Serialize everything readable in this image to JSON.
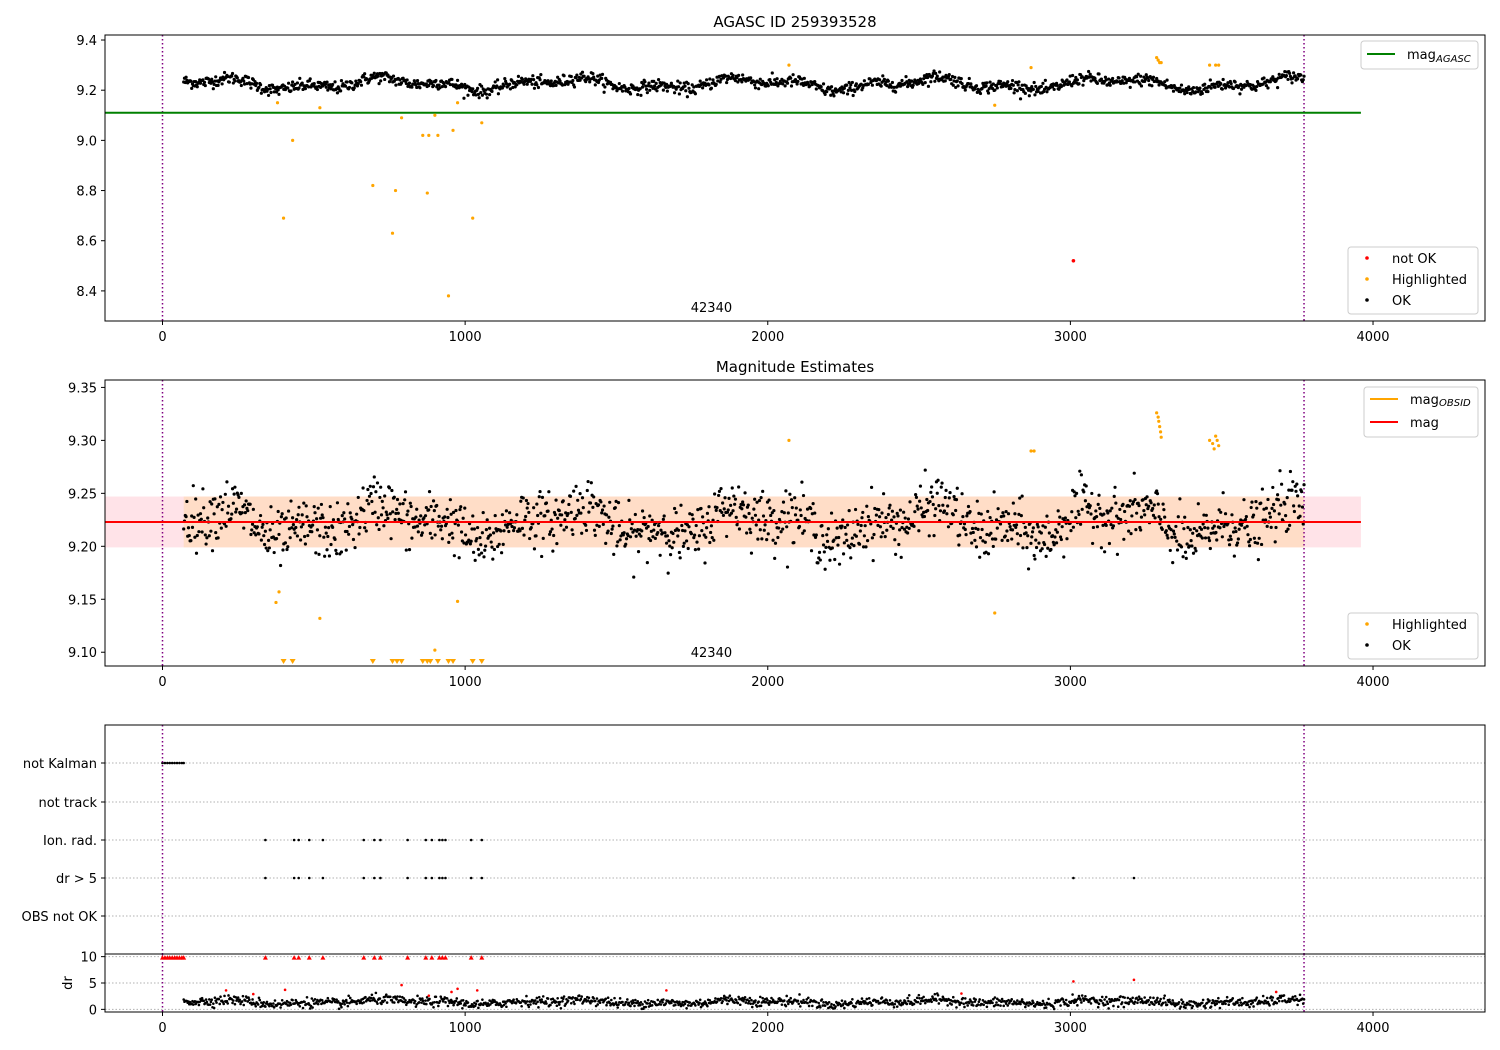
{
  "chart_data": [
    {
      "type": "scatter",
      "title": "AGASC ID 259393528",
      "xlabel": "",
      "ylabel": "",
      "xlim": [
        -190,
        4370
      ],
      "ylim": [
        8.28,
        9.42
      ],
      "xticks": [
        0,
        1000,
        2000,
        3000,
        4000
      ],
      "xtick_labels": [
        "0",
        "1000",
        "2000",
        "3000",
        "4000"
      ],
      "yticks": [
        8.4,
        8.6,
        8.8,
        9.0,
        9.2,
        9.4
      ],
      "ytick_labels": [
        "8.4",
        "8.6",
        "8.8",
        "9.0",
        "9.2",
        "9.4"
      ],
      "annotation": {
        "text": "42340",
        "x": 1880
      },
      "vlines": [
        0,
        3772
      ],
      "hline": {
        "name": "mag_AGASC",
        "y": 9.11,
        "x_range": [
          -190,
          3960
        ],
        "color": "#008000"
      },
      "ok_series": {
        "name": "OK",
        "x_range": [
          70,
          3772
        ],
        "base": 9.225,
        "wave_amp": 0.03,
        "noise": 0.012,
        "color": "#000000"
      },
      "highlighted_points": [
        [
          380,
          9.15
        ],
        [
          400,
          8.69
        ],
        [
          430,
          9.0
        ],
        [
          520,
          9.13
        ],
        [
          695,
          8.82
        ],
        [
          760,
          8.63
        ],
        [
          770,
          8.8
        ],
        [
          790,
          9.09
        ],
        [
          860,
          9.02
        ],
        [
          875,
          8.79
        ],
        [
          880,
          9.02
        ],
        [
          900,
          9.1
        ],
        [
          910,
          9.02
        ],
        [
          945,
          8.38
        ],
        [
          960,
          9.04
        ],
        [
          975,
          9.15
        ],
        [
          1025,
          8.69
        ],
        [
          1055,
          9.07
        ],
        [
          2070,
          9.3
        ],
        [
          2750,
          9.14
        ],
        [
          2870,
          9.29
        ],
        [
          3285,
          9.33
        ],
        [
          3290,
          9.32
        ],
        [
          3295,
          9.31
        ],
        [
          3300,
          9.31
        ],
        [
          3460,
          9.3
        ],
        [
          3480,
          9.3
        ],
        [
          3490,
          9.3
        ]
      ],
      "not_ok_points": [
        [
          3010,
          8.52
        ]
      ],
      "legend_upper": [
        {
          "label": "mag",
          "sub": "AGASC",
          "color": "#008000"
        }
      ],
      "legend_lower": [
        {
          "label": "not OK",
          "color": "#ff0000"
        },
        {
          "label": "Highlighted",
          "color": "#ffa500"
        },
        {
          "label": "OK",
          "color": "#000000"
        }
      ]
    },
    {
      "type": "scatter",
      "title": "Magnitude Estimates",
      "xlabel": "",
      "ylabel": "",
      "xlim": [
        -190,
        4370
      ],
      "ylim": [
        9.087,
        9.357
      ],
      "xticks": [
        0,
        1000,
        2000,
        3000,
        4000
      ],
      "xtick_labels": [
        "0",
        "1000",
        "2000",
        "3000",
        "4000"
      ],
      "yticks": [
        9.1,
        9.15,
        9.2,
        9.25,
        9.3,
        9.35
      ],
      "ytick_labels": [
        "9.10",
        "9.15",
        "9.20",
        "9.25",
        "9.30",
        "9.35"
      ],
      "annotation": {
        "text": "42340",
        "x": 1880
      },
      "vlines": [
        0,
        3772
      ],
      "mag_line": {
        "name": "mag",
        "y": 9.223,
        "x_range": [
          -190,
          3960
        ],
        "color": "#ff0000"
      },
      "mag_band": {
        "y_low": 9.199,
        "y_high": 9.247,
        "x_range": [
          -190,
          3960
        ],
        "color": "#ffc0cb"
      },
      "obsid_line": {
        "name": "mag_OBSID",
        "y": 9.222,
        "x_range": [
          70,
          3772
        ],
        "color": "#ffa500"
      },
      "obsid_band": {
        "y_low": 9.199,
        "y_high": 9.247,
        "x_range": [
          70,
          3772
        ],
        "color": "#ffdab9"
      },
      "ok_series": {
        "name": "OK",
        "x_range": [
          70,
          3772
        ],
        "base": 9.222,
        "wave_amp": 0.02,
        "noise": 0.013,
        "color": "#000000"
      },
      "highlighted_points": [
        [
          375,
          9.147
        ],
        [
          385,
          9.157
        ],
        [
          520,
          9.132
        ],
        [
          900,
          9.102
        ],
        [
          975,
          9.148
        ],
        [
          2070,
          9.3
        ],
        [
          2750,
          9.137
        ],
        [
          2870,
          9.29
        ],
        [
          2880,
          9.29
        ],
        [
          3285,
          9.326
        ],
        [
          3290,
          9.322
        ],
        [
          3292,
          9.318
        ],
        [
          3295,
          9.313
        ],
        [
          3298,
          9.308
        ],
        [
          3300,
          9.303
        ],
        [
          3460,
          9.3
        ],
        [
          3470,
          9.297
        ],
        [
          3480,
          9.304
        ],
        [
          3485,
          9.3
        ],
        [
          3490,
          9.295
        ],
        [
          3475,
          9.292
        ]
      ],
      "clipped_markers_x": [
        400,
        430,
        695,
        760,
        775,
        790,
        860,
        875,
        885,
        910,
        945,
        960,
        1025,
        1055
      ],
      "legend_upper": [
        {
          "label": "mag",
          "sub": "OBSID",
          "color": "#ffa500"
        },
        {
          "label": "mag",
          "sub": "",
          "color": "#ff0000"
        }
      ],
      "legend_lower": [
        {
          "label": "Highlighted",
          "color": "#ffa500"
        },
        {
          "label": "OK",
          "color": "#000000"
        }
      ]
    },
    {
      "type": "scatter",
      "title": "",
      "xlim": [
        -190,
        4370
      ],
      "xticks": [
        0,
        1000,
        2000,
        3000,
        4000
      ],
      "xtick_labels": [
        "0",
        "1000",
        "2000",
        "3000",
        "4000"
      ],
      "flag_labels": [
        "not Kalman",
        "not track",
        "Ion. rad.",
        "dr > 5",
        "OBS not OK"
      ],
      "flag_points": {
        "not Kalman": [
          0,
          8,
          16,
          24,
          32,
          40,
          48,
          56,
          64,
          70
        ],
        "not track": [],
        "Ion. rad.": [
          340,
          435,
          450,
          485,
          530,
          665,
          700,
          720,
          810,
          870,
          890,
          915,
          925,
          935,
          1020,
          1055
        ],
        "dr > 5": [
          340,
          435,
          450,
          485,
          530,
          665,
          700,
          720,
          810,
          870,
          890,
          915,
          925,
          935,
          1020,
          1055,
          3010,
          3210
        ],
        "OBS not OK": []
      },
      "vlines": [
        0,
        3772
      ]
    },
    {
      "type": "scatter",
      "title": "",
      "xlabel": "",
      "ylabel": "dr",
      "xlim": [
        -190,
        4370
      ],
      "ylim": [
        -0.5,
        10.5
      ],
      "xticks": [
        0,
        1000,
        2000,
        3000,
        4000
      ],
      "xtick_labels": [
        "0",
        "1000",
        "2000",
        "3000",
        "4000"
      ],
      "yticks": [
        0,
        5,
        10
      ],
      "ytick_labels": [
        "0",
        "5",
        "10"
      ],
      "vlines": [
        0,
        3772
      ],
      "ok_series": {
        "name": "OK dr",
        "x_range": [
          70,
          3772
        ],
        "base": 1.4,
        "wave_amp": 0.5,
        "noise": 0.45,
        "color": "#000000"
      },
      "clipped_high_x": [
        0,
        8,
        16,
        24,
        32,
        40,
        48,
        56,
        64,
        70,
        340,
        435,
        450,
        485,
        530,
        665,
        700,
        720,
        810,
        870,
        890,
        915,
        925,
        935,
        1020,
        1055
      ],
      "red_points": [
        [
          210,
          3.6
        ],
        [
          300,
          2.9
        ],
        [
          405,
          3.7
        ],
        [
          790,
          4.6
        ],
        [
          880,
          2.6
        ],
        [
          955,
          3.3
        ],
        [
          975,
          3.9
        ],
        [
          1040,
          3.6
        ],
        [
          1665,
          3.6
        ],
        [
          2640,
          3.0
        ],
        [
          3010,
          5.3
        ],
        [
          3210,
          5.6
        ],
        [
          3680,
          3.3
        ]
      ]
    }
  ]
}
